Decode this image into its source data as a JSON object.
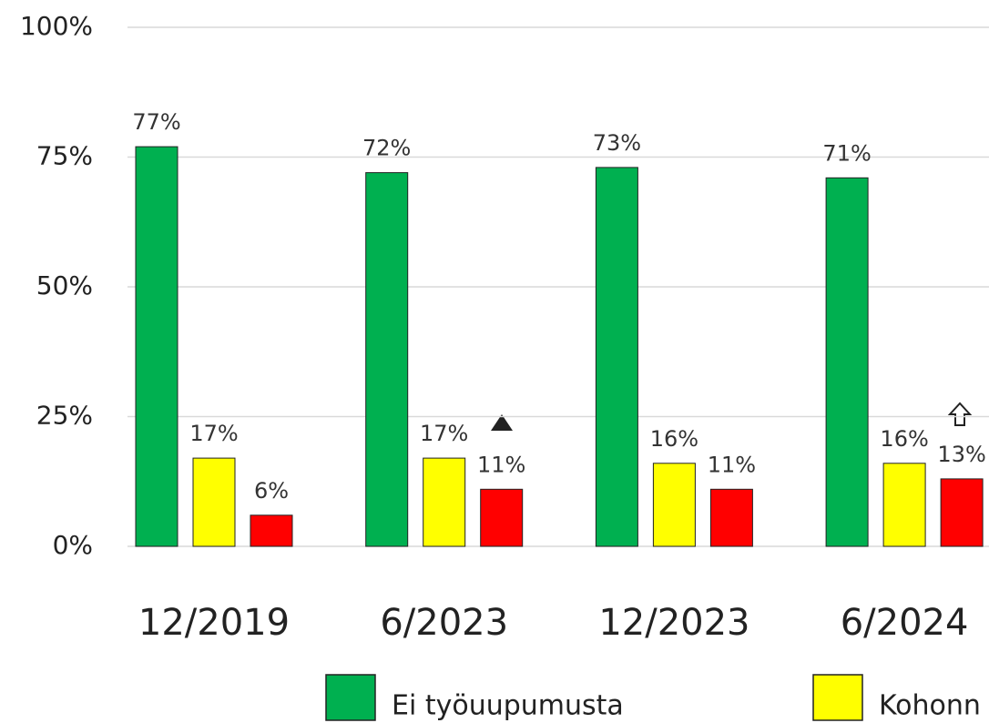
{
  "chart_data": {
    "type": "bar",
    "categories": [
      "12/2019",
      "6/2023",
      "12/2023",
      "6/2024"
    ],
    "series": [
      {
        "name": "Ei työuupumusta",
        "color": "#00b050",
        "values": [
          77,
          72,
          73,
          71
        ],
        "value_labels": [
          "77%",
          "72%",
          "73%",
          "71%"
        ]
      },
      {
        "name": "Kohonn",
        "color": "#ffff00",
        "values": [
          17,
          17,
          16,
          16
        ],
        "value_labels": [
          "17%",
          "17%",
          "16%",
          "16%"
        ]
      },
      {
        "color": "#ff0000",
        "values": [
          6,
          11,
          11,
          13
        ],
        "value_labels": [
          "6%",
          "11%",
          "11%",
          "13%"
        ]
      }
    ],
    "ylim": [
      0,
      100
    ],
    "yticks": [
      {
        "value": 0,
        "label": "0%"
      },
      {
        "value": 25,
        "label": "25%"
      },
      {
        "value": 50,
        "label": "50%"
      },
      {
        "value": 75,
        "label": "75%"
      },
      {
        "value": 100,
        "label": "100%"
      }
    ],
    "grid": true
  }
}
